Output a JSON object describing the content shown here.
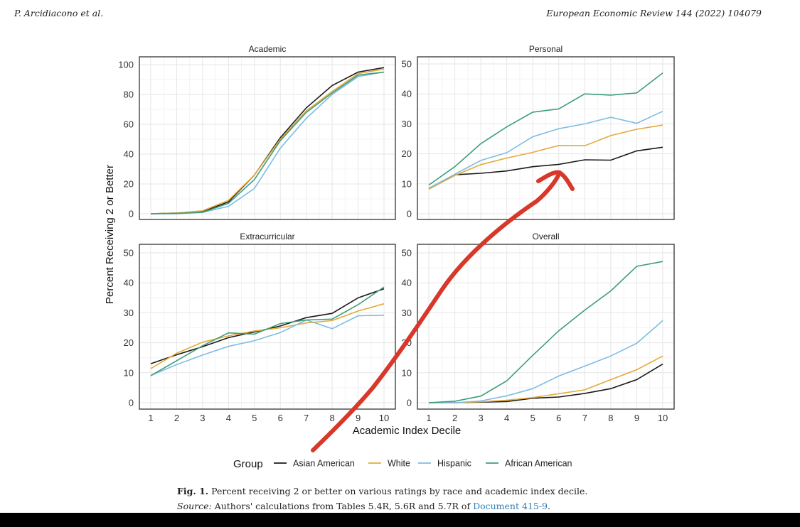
{
  "header": {
    "left": "P. Arcidiacono et al.",
    "right": "European Economic Review 144 (2022) 104079"
  },
  "caption": {
    "fig_label": "Fig. 1.",
    "text": " Percent receiving 2 or better on various ratings by race and academic index decile.",
    "source_label": "Source:",
    "source_text": " Authors' calculations from Tables 5.4R, 5.6R and 5.7R of ",
    "source_link": "Document 415-9",
    "source_end": "."
  },
  "colors": {
    "Asian American": "#1a1a1a",
    "White": "#e6a93a",
    "Hispanic": "#7dbde4",
    "African American": "#3f9e7a",
    "annotation": "#d8382a"
  },
  "chart_data": {
    "type": "line",
    "ylabel": "Percent Receiving 2 or Better",
    "xlabel": "Academic Index Decile",
    "x": [
      1,
      2,
      3,
      4,
      5,
      6,
      7,
      8,
      9,
      10
    ],
    "legend": {
      "title": "Group",
      "position": "bottom",
      "entries": [
        "Asian American",
        "White",
        "Hispanic",
        "African American"
      ]
    },
    "grid": true,
    "annotation": "hand-drawn red arrow pointing to Asian American line in Personal panel",
    "panels": [
      {
        "title": "Academic",
        "ylim": [
          0,
          100
        ],
        "yticks": [
          0,
          20,
          40,
          60,
          80,
          100
        ],
        "series": [
          {
            "name": "Asian American",
            "values": [
              0,
              0.5,
              1.5,
              8,
              26,
              51,
              71,
              86,
              95,
              98
            ]
          },
          {
            "name": "White",
            "values": [
              0,
              0.5,
              2,
              9,
              26,
              50,
              69,
              82,
              94,
              97
            ]
          },
          {
            "name": "Hispanic",
            "values": [
              0,
              0,
              1,
              5,
              17,
              44,
              64,
              80,
              92,
              95
            ]
          },
          {
            "name": "African American",
            "values": [
              0,
              0.3,
              1,
              7,
              23,
              49,
              68,
              81,
              93,
              95
            ]
          }
        ]
      },
      {
        "title": "Personal",
        "ylim": [
          0,
          50
        ],
        "yticks": [
          0,
          10,
          20,
          30,
          40,
          50
        ],
        "series": [
          {
            "name": "Asian American",
            "values": [
              8.5,
              13,
              13.5,
              14.3,
              15.7,
              16.5,
              18,
              17.9,
              21,
              22.2
            ]
          },
          {
            "name": "White",
            "values": [
              8.2,
              12.8,
              16.4,
              18.6,
              20.5,
              22.8,
              22.7,
              26.1,
              28.2,
              29.6
            ]
          },
          {
            "name": "Hispanic",
            "values": [
              8.5,
              13.2,
              17.8,
              20.4,
              25.7,
              28.4,
              30,
              32.2,
              30.2,
              34.2
            ]
          },
          {
            "name": "African American",
            "values": [
              9.6,
              15.7,
              23.4,
              29,
              33.9,
              35,
              40,
              39.6,
              40.3,
              47
            ]
          }
        ]
      },
      {
        "title": "Extracurricular",
        "ylim": [
          0,
          50
        ],
        "yticks": [
          0,
          10,
          20,
          30,
          40,
          50
        ],
        "series": [
          {
            "name": "Asian American",
            "values": [
              13,
              16,
              18.7,
              21.7,
              23.6,
              25.6,
              28.4,
              29.8,
              35,
              38
            ]
          },
          {
            "name": "White",
            "values": [
              11.4,
              16.5,
              20.2,
              22.3,
              23.9,
              25,
              26.6,
              27.4,
              30.6,
              33
            ]
          },
          {
            "name": "Hispanic",
            "values": [
              9.1,
              12.7,
              15.9,
              18.8,
              20.7,
              23.4,
              27.6,
              24.7,
              29,
              29.2
            ]
          },
          {
            "name": "African American",
            "values": [
              9,
              14,
              19,
              23.3,
              22.9,
              26.4,
              27.6,
              27.9,
              32.7,
              38.6
            ]
          }
        ]
      },
      {
        "title": "Overall",
        "ylim": [
          0,
          50
        ],
        "yticks": [
          0,
          10,
          20,
          30,
          40,
          50
        ],
        "series": [
          {
            "name": "Asian American",
            "values": [
              0,
              0,
              0.2,
              0.4,
              1.5,
              1.9,
              3.1,
              4.7,
              7.7,
              12.9
            ]
          },
          {
            "name": "White",
            "values": [
              0,
              0,
              0.3,
              0.8,
              1.7,
              3,
              4.3,
              7.7,
              11,
              15.6
            ]
          },
          {
            "name": "Hispanic",
            "values": [
              0,
              0,
              0.6,
              2.3,
              4.7,
              8.9,
              12.2,
              15.6,
              19.8,
              27.4
            ]
          },
          {
            "name": "African American",
            "values": [
              0,
              0.5,
              2.2,
              7.3,
              15.8,
              24,
              30.9,
              37.3,
              45.5,
              47.1
            ]
          }
        ]
      }
    ]
  }
}
